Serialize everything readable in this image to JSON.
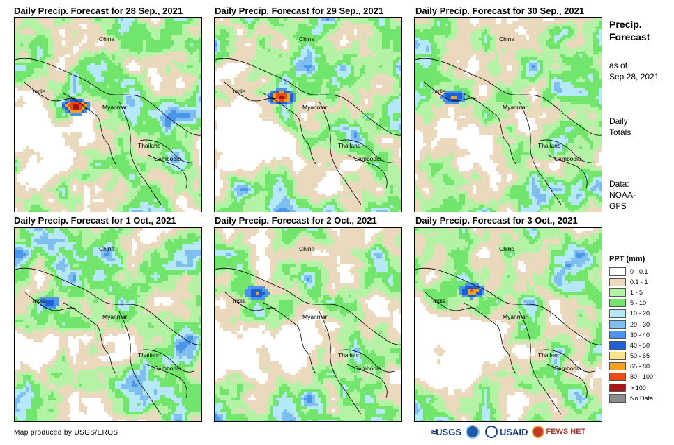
{
  "panels": [
    {
      "title": "Daily Precip. Forecast for 28 Sep., 2021",
      "seed": 11,
      "hot": 1.0
    },
    {
      "title": "Daily Precip. Forecast for 29 Sep., 2021",
      "seed": 23,
      "hot": 0.9
    },
    {
      "title": "Daily Precip. Forecast for 30 Sep., 2021",
      "seed": 37,
      "hot": 0.5
    },
    {
      "title": "Daily Precip. Forecast for 1 Oct., 2021",
      "seed": 41,
      "hot": 0.35
    },
    {
      "title": "Daily Precip. Forecast for 2 Oct., 2021",
      "seed": 53,
      "hot": 0.45
    },
    {
      "title": "Daily Precip. Forecast for 3 Oct., 2021",
      "seed": 67,
      "hot": 0.6
    }
  ],
  "map_labels": {
    "china": "China",
    "india": "India",
    "myanmar": "Myanmar",
    "thailand": "Thailand",
    "cambodia": "Cambodia"
  },
  "side": {
    "title_line1": "Precip.",
    "title_line2": "Forecast",
    "asof_line1": "as of",
    "asof_line2": "Sep 28, 2021",
    "totals_line1": "Daily",
    "totals_line2": "Totals",
    "data_line1": "Data:",
    "data_line2": "NOAA-",
    "data_line3": "GFS"
  },
  "legend": {
    "title": "PPT (mm)",
    "items": [
      {
        "label": "0 - 0.1",
        "color": "#ffffff"
      },
      {
        "label": "0.1 - 1",
        "color": "#ead9bd"
      },
      {
        "label": "1 - 5",
        "color": "#b4f2a6"
      },
      {
        "label": "5 - 10",
        "color": "#72e66c"
      },
      {
        "label": "10 - 20",
        "color": "#b6e9f8"
      },
      {
        "label": "20 - 30",
        "color": "#7fbff0"
      },
      {
        "label": "30 - 40",
        "color": "#4b96ea"
      },
      {
        "label": "40 - 50",
        "color": "#1f5fd6"
      },
      {
        "label": "50 - 65",
        "color": "#fbe48a"
      },
      {
        "label": "65 - 80",
        "color": "#f6a11d"
      },
      {
        "label": "80 - 100",
        "color": "#ea4c16"
      },
      {
        "label": "> 100",
        "color": "#a6171c"
      },
      {
        "label": "No Data",
        "color": "#8c8c8c"
      }
    ]
  },
  "credit": "Map produced by USGS/EROS",
  "logos": {
    "usgs": "≈USGS",
    "usaid": "USAID",
    "fews": "FEWS NET"
  }
}
